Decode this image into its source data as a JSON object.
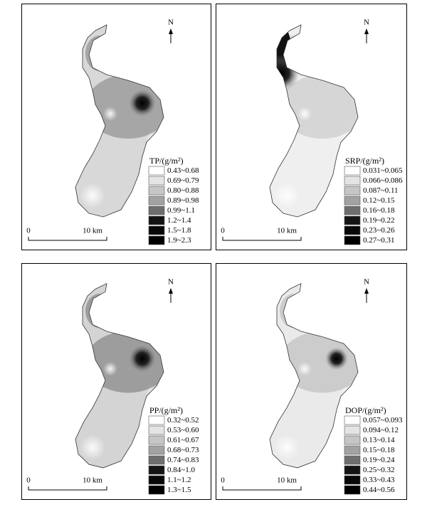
{
  "panels": [
    {
      "north": "N",
      "scale": {
        "start": "0",
        "end": "10 km"
      },
      "legend": {
        "title": "TP/(g/m²)",
        "items": [
          {
            "label": "0.43~0.68",
            "color": "#ffffff"
          },
          {
            "label": "0.69~0.79",
            "color": "#e4e4e4"
          },
          {
            "label": "0.80~0.88",
            "color": "#c6c6c6"
          },
          {
            "label": "0.89~0.98",
            "color": "#a2a2a2"
          },
          {
            "label": "0.99~1.1",
            "color": "#6e6e6e"
          },
          {
            "label": "1.2~1.4",
            "color": "#141414"
          },
          {
            "label": "1.5~1.8",
            "color": "#080808"
          },
          {
            "label": "1.9~2.3",
            "color": "#000000"
          }
        ]
      }
    },
    {
      "north": "N",
      "scale": {
        "start": "0",
        "end": "10 km"
      },
      "legend": {
        "title": "SRP/(g/m²)",
        "items": [
          {
            "label": "0.031~0.065",
            "color": "#ffffff"
          },
          {
            "label": "0.066~0.086",
            "color": "#e4e4e4"
          },
          {
            "label": "0.087~0.11",
            "color": "#c6c6c6"
          },
          {
            "label": "0.12~0.15",
            "color": "#a2a2a2"
          },
          {
            "label": "0.16~0.18",
            "color": "#6e6e6e"
          },
          {
            "label": "0.19~0.22",
            "color": "#141414"
          },
          {
            "label": "0.23~0.26",
            "color": "#080808"
          },
          {
            "label": "0.27~0.31",
            "color": "#000000"
          }
        ]
      }
    },
    {
      "north": "N",
      "scale": {
        "start": "0",
        "end": "10 km"
      },
      "legend": {
        "title": "PP/(g/m²)",
        "items": [
          {
            "label": "0.32~0.52",
            "color": "#ffffff"
          },
          {
            "label": "0.53~0.60",
            "color": "#e4e4e4"
          },
          {
            "label": "0.61~0.67",
            "color": "#c6c6c6"
          },
          {
            "label": "0.68~0.73",
            "color": "#a2a2a2"
          },
          {
            "label": "0.74~0.83",
            "color": "#6e6e6e"
          },
          {
            "label": "0.84~1.0",
            "color": "#141414"
          },
          {
            "label": "1.1~1.2",
            "color": "#080808"
          },
          {
            "label": "1.3~1.5",
            "color": "#000000"
          }
        ]
      }
    },
    {
      "north": "N",
      "scale": {
        "start": "0",
        "end": "10 km"
      },
      "legend": {
        "title": "DOP/(g/m²)",
        "items": [
          {
            "label": "0.057~0.093",
            "color": "#ffffff"
          },
          {
            "label": "0.094~0.12",
            "color": "#e4e4e4"
          },
          {
            "label": "0.13~0.14",
            "color": "#c6c6c6"
          },
          {
            "label": "0.15~0.18",
            "color": "#a2a2a2"
          },
          {
            "label": "0.19~0.24",
            "color": "#6e6e6e"
          },
          {
            "label": "0.25~0.32",
            "color": "#141414"
          },
          {
            "label": "0.33~0.43",
            "color": "#080808"
          },
          {
            "label": "0.44~0.56",
            "color": "#000000"
          }
        ]
      }
    }
  ]
}
